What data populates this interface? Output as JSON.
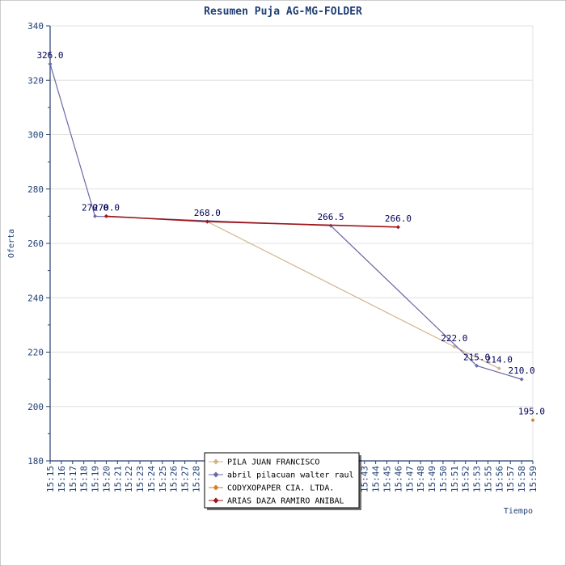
{
  "chart_data": {
    "type": "line",
    "title": "Resumen Puja AG-MG-FOLDER",
    "xlabel": "Tiempo",
    "ylabel": "Oferta",
    "ylim": [
      180,
      340
    ],
    "yticks": [
      180,
      200,
      220,
      240,
      260,
      280,
      300,
      320,
      340
    ],
    "grid": true,
    "legend_position": "bottom-center",
    "x_ticks": [
      "15:15",
      "15:16",
      "15:17",
      "15:18",
      "15:19",
      "15:20",
      "15:21",
      "15:22",
      "15:23",
      "15:24",
      "15:25",
      "15:26",
      "15:27",
      "15:28",
      "15:29",
      "15:30",
      "15:31",
      "15:32",
      "15:33",
      "15:34",
      "15:35",
      "15:36",
      "15:37",
      "15:38",
      "15:39",
      "15:40",
      "15:41",
      "15:42",
      "15:43",
      "15:44",
      "15:45",
      "15:46",
      "15:47",
      "15:48",
      "15:49",
      "15:50",
      "15:51",
      "15:52",
      "15:53",
      "15:55",
      "15:56",
      "15:57",
      "15:58",
      "15:59"
    ],
    "series": [
      {
        "name": "PILA  JUAN FRANCISCO",
        "color": "#d2b48c",
        "points": [
          {
            "x": "15:29",
            "y": 268.0,
            "label": ""
          },
          {
            "x": "15:51",
            "y": 222.0,
            "label": "222.0"
          },
          {
            "x": "15:56",
            "y": 214.0,
            "label": "214.0"
          }
        ]
      },
      {
        "name": "abril pilacuan walter raul",
        "color": "#6a6aa8",
        "points": [
          {
            "x": "15:15",
            "y": 326.0,
            "label": "326.0"
          },
          {
            "x": "15:19",
            "y": 270.0,
            "label": "270.0"
          },
          {
            "x": "15:40",
            "y": 266.5,
            "label": "266.5"
          },
          {
            "x": "15:53",
            "y": 215.0,
            "label": "215.0"
          },
          {
            "x": "15:58",
            "y": 210.0,
            "label": "210.0"
          }
        ]
      },
      {
        "name": "CODYXOPAPER CIA. LTDA.",
        "color": "#d2822a",
        "points": [
          {
            "x": "15:59",
            "y": 195.0,
            "label": "195.0"
          }
        ]
      },
      {
        "name": "ARIAS DAZA RAMIRO ANIBAL",
        "color": "#a01414",
        "points": [
          {
            "x": "15:20",
            "y": 270.0,
            "label": "270.0"
          },
          {
            "x": "15:29",
            "y": 268.0,
            "label": "268.0"
          },
          {
            "x": "15:46",
            "y": 266.0,
            "label": "266.0"
          }
        ]
      }
    ]
  }
}
